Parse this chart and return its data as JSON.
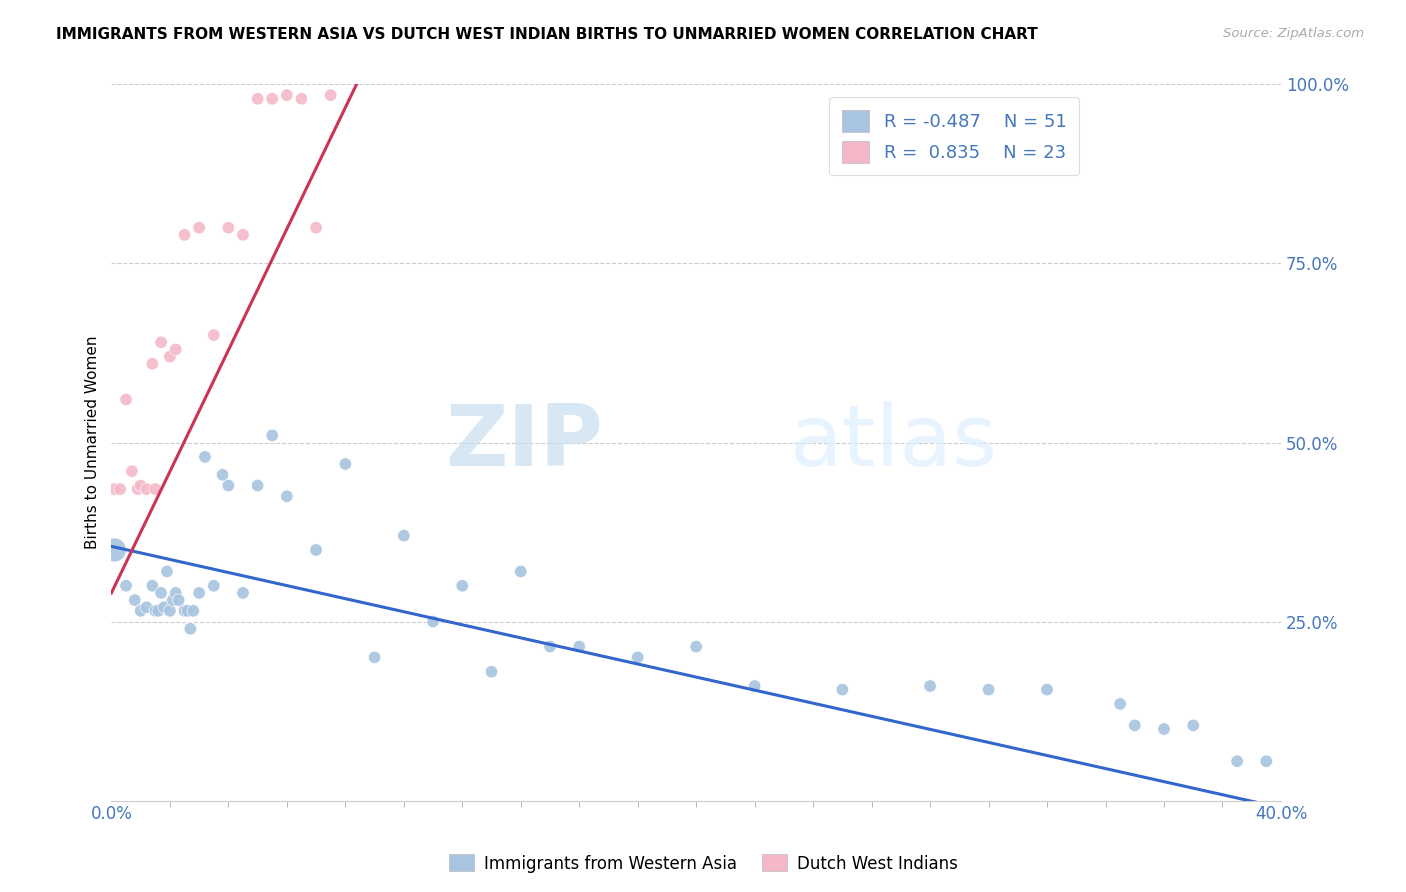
{
  "title": "IMMIGRANTS FROM WESTERN ASIA VS DUTCH WEST INDIAN BIRTHS TO UNMARRIED WOMEN CORRELATION CHART",
  "source": "Source: ZipAtlas.com",
  "ylabel": "Births to Unmarried Women",
  "ylabel_right_ticks": [
    "100.0%",
    "75.0%",
    "50.0%",
    "25.0%"
  ],
  "legend_blue_label": "Immigrants from Western Asia",
  "legend_pink_label": "Dutch West Indians",
  "blue_color": "#a8c4e0",
  "pink_color": "#f4b8c8",
  "blue_line_color": "#3366cc",
  "pink_line_color": "#cc3355",
  "watermark_zip": "ZIP",
  "watermark_atlas": "atlas",
  "blue_scatter_x": [
    0.1,
    0.5,
    0.8,
    1.0,
    1.2,
    1.4,
    1.5,
    1.6,
    1.7,
    1.8,
    1.9,
    2.0,
    2.1,
    2.2,
    2.3,
    2.5,
    2.6,
    2.7,
    2.8,
    3.0,
    3.2,
    3.5,
    3.8,
    4.0,
    4.5,
    5.0,
    5.5,
    6.0,
    7.0,
    8.0,
    9.0,
    10.0,
    11.0,
    12.0,
    13.0,
    14.0,
    15.0,
    16.0,
    18.0,
    20.0,
    22.0,
    25.0,
    28.0,
    30.0,
    32.0,
    34.5,
    35.0,
    36.0,
    37.0,
    38.5,
    39.5
  ],
  "blue_scatter_y": [
    0.35,
    0.3,
    0.28,
    0.265,
    0.27,
    0.3,
    0.265,
    0.265,
    0.29,
    0.27,
    0.32,
    0.265,
    0.28,
    0.29,
    0.28,
    0.265,
    0.265,
    0.24,
    0.265,
    0.29,
    0.48,
    0.3,
    0.455,
    0.44,
    0.29,
    0.44,
    0.51,
    0.425,
    0.35,
    0.47,
    0.2,
    0.37,
    0.25,
    0.3,
    0.18,
    0.32,
    0.215,
    0.215,
    0.2,
    0.215,
    0.16,
    0.155,
    0.16,
    0.155,
    0.155,
    0.135,
    0.105,
    0.1,
    0.105,
    0.055,
    0.055
  ],
  "blue_scatter_sizes": [
    300,
    80,
    80,
    80,
    80,
    80,
    80,
    80,
    80,
    80,
    80,
    80,
    80,
    80,
    80,
    80,
    80,
    80,
    80,
    80,
    80,
    80,
    80,
    80,
    80,
    80,
    80,
    80,
    80,
    80,
    80,
    80,
    80,
    80,
    80,
    80,
    80,
    80,
    80,
    80,
    80,
    80,
    80,
    80,
    80,
    80,
    80,
    80,
    80,
    80,
    80
  ],
  "pink_scatter_x": [
    0.1,
    0.3,
    0.5,
    0.7,
    0.9,
    1.0,
    1.2,
    1.4,
    1.5,
    1.7,
    2.0,
    2.2,
    2.5,
    3.0,
    3.5,
    4.0,
    4.5,
    5.0,
    5.5,
    6.0,
    6.5,
    7.0,
    7.5
  ],
  "pink_scatter_y": [
    0.435,
    0.435,
    0.56,
    0.46,
    0.435,
    0.44,
    0.435,
    0.61,
    0.435,
    0.64,
    0.62,
    0.63,
    0.79,
    0.8,
    0.65,
    0.8,
    0.79,
    0.98,
    0.98,
    0.985,
    0.98,
    0.8,
    0.985
  ],
  "pink_scatter_sizes": [
    80,
    80,
    80,
    80,
    80,
    80,
    80,
    80,
    80,
    80,
    80,
    80,
    80,
    80,
    80,
    80,
    80,
    80,
    80,
    80,
    80,
    80,
    80
  ],
  "xlim": [
    0.0,
    40.0
  ],
  "ylim": [
    0.0,
    1.0
  ],
  "blue_line_x0": 0.0,
  "blue_line_y0": 0.355,
  "blue_line_x1": 40.0,
  "blue_line_y1": -0.01,
  "pink_line_x0": 0.0,
  "pink_line_y0": 0.29,
  "pink_line_x1": 8.5,
  "pink_line_y1": 1.01
}
